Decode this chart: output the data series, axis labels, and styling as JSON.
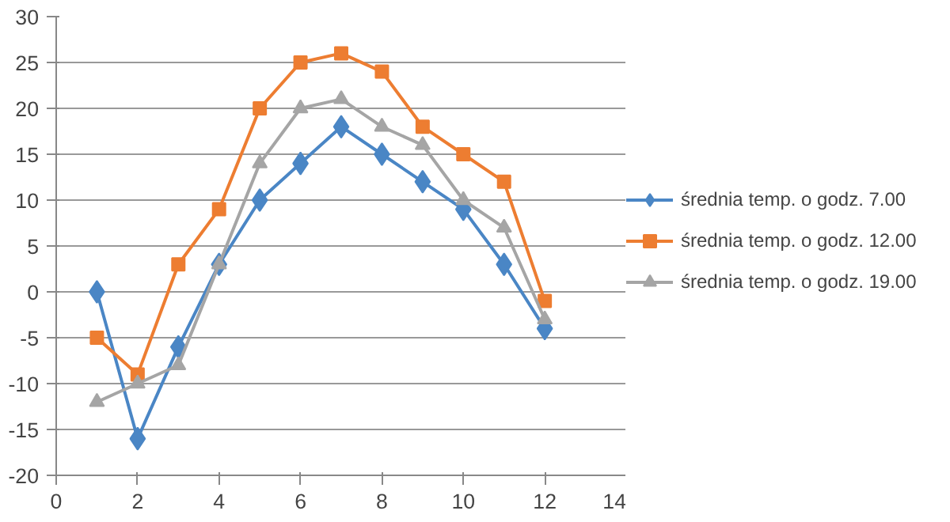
{
  "chart_data": {
    "type": "line",
    "x": [
      1,
      2,
      3,
      4,
      5,
      6,
      7,
      8,
      9,
      10,
      11,
      12
    ],
    "series": [
      {
        "name": "średnia temp. o godz. 7.00",
        "color": "#4a86c5",
        "marker": "diamond",
        "values": [
          0,
          -16,
          -6,
          3,
          10,
          14,
          18,
          15,
          12,
          9,
          3,
          -4
        ]
      },
      {
        "name": "średnia temp. o godz. 12.00",
        "color": "#ed7d31",
        "marker": "square",
        "values": [
          -5,
          -9,
          3,
          9,
          20,
          25,
          26,
          24,
          18,
          15,
          12,
          -1
        ]
      },
      {
        "name": "średnia temp. o godz. 19.00",
        "color": "#a5a5a5",
        "marker": "triangle",
        "values": [
          -12,
          -10,
          -8,
          3,
          14,
          20,
          21,
          18,
          16,
          10,
          7,
          -3
        ]
      }
    ],
    "xlim": [
      0,
      14
    ],
    "xticks": [
      0,
      2,
      4,
      6,
      8,
      10,
      12,
      14
    ],
    "ylim": [
      -20,
      30
    ],
    "yticks": [
      -20,
      -15,
      -10,
      -5,
      0,
      5,
      10,
      15,
      20,
      25,
      30
    ],
    "grid": "y",
    "legend": "right",
    "line_style": "solid"
  }
}
